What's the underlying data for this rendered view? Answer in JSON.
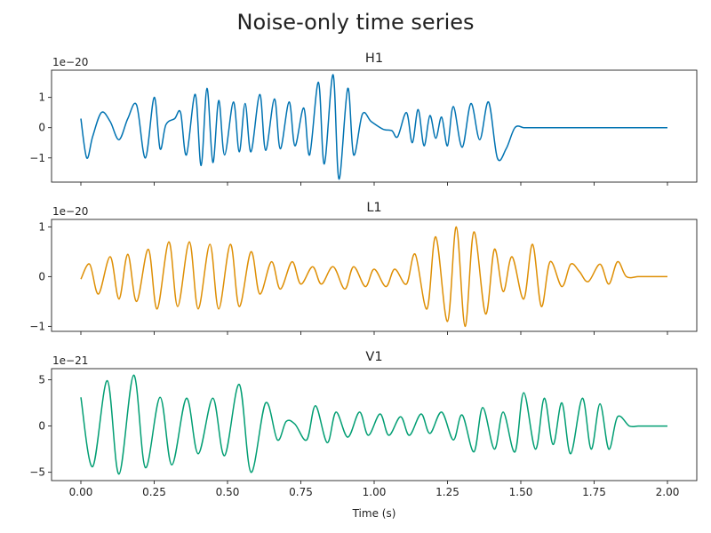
{
  "chart_data": {
    "type": "line",
    "title": "Noise-only time series",
    "xlabel": "Time (s)",
    "xlim": [
      -0.1,
      2.1
    ],
    "xticks": [
      0.0,
      0.25,
      0.5,
      0.75,
      1.0,
      1.25,
      1.5,
      1.75,
      2.0
    ],
    "xtick_labels": [
      "0.00",
      "0.25",
      "0.50",
      "0.75",
      "1.00",
      "1.25",
      "1.50",
      "1.75",
      "2.00"
    ],
    "panels": [
      {
        "title": "H1",
        "color": "#0173b2",
        "offset_label": "1e−20",
        "ylim": [
          -1.8,
          1.9
        ],
        "yticks": [
          1,
          0,
          -1
        ],
        "ytick_labels": [
          "1",
          "0",
          "−1"
        ],
        "x": [
          0.0,
          0.02,
          0.04,
          0.07,
          0.1,
          0.13,
          0.16,
          0.19,
          0.22,
          0.25,
          0.27,
          0.29,
          0.32,
          0.34,
          0.36,
          0.39,
          0.41,
          0.43,
          0.45,
          0.47,
          0.49,
          0.52,
          0.54,
          0.56,
          0.58,
          0.61,
          0.63,
          0.66,
          0.68,
          0.71,
          0.73,
          0.76,
          0.78,
          0.81,
          0.83,
          0.86,
          0.88,
          0.91,
          0.93,
          0.96,
          0.99,
          1.03,
          1.06,
          1.08,
          1.11,
          1.13,
          1.15,
          1.17,
          1.19,
          1.21,
          1.23,
          1.25,
          1.27,
          1.3,
          1.33,
          1.36,
          1.39,
          1.42,
          1.45,
          1.48,
          1.51,
          1.53,
          1.56,
          1.58,
          1.61,
          1.63,
          1.66,
          1.68,
          1.71,
          1.74,
          1.77,
          1.79,
          1.82,
          1.85,
          1.87,
          1.9,
          1.93,
          1.96,
          1.98,
          2.0
        ],
        "values": [
          0.3,
          -1.0,
          -0.3,
          0.5,
          0.2,
          -0.4,
          0.3,
          0.75,
          -1.0,
          1.0,
          -0.7,
          0.1,
          0.3,
          0.5,
          -0.9,
          1.1,
          -1.25,
          1.3,
          -1.15,
          0.9,
          -0.9,
          0.85,
          -0.8,
          0.8,
          -0.8,
          1.1,
          -0.75,
          0.95,
          -0.7,
          0.85,
          -0.6,
          0.65,
          -0.9,
          1.5,
          -1.2,
          1.75,
          -1.7,
          1.3,
          -0.9,
          0.45,
          0.2,
          -0.05,
          -0.1,
          -0.3,
          0.5,
          -0.5,
          0.6,
          -0.6,
          0.4,
          -0.35,
          0.35,
          -0.6,
          0.7,
          -0.65,
          0.8,
          -0.4,
          0.85,
          -1.0,
          -0.7,
          0.0,
          0.0,
          0.0,
          0.0,
          0.0,
          0.0,
          0.0,
          0.0,
          0.0,
          0.0,
          0.0,
          0.0,
          0.0,
          0.0,
          0.0,
          0.0,
          0.0,
          0.0,
          0.0,
          0.0,
          0.0
        ]
      },
      {
        "title": "L1",
        "color": "#de8f05",
        "offset_label": "1e−20",
        "ylim": [
          -1.1,
          1.15
        ],
        "yticks": [
          1,
          0,
          -1
        ],
        "ytick_labels": [
          "1",
          "0",
          "−1"
        ],
        "x": [
          0.0,
          0.03,
          0.06,
          0.1,
          0.13,
          0.16,
          0.19,
          0.23,
          0.26,
          0.3,
          0.33,
          0.37,
          0.4,
          0.44,
          0.47,
          0.51,
          0.54,
          0.58,
          0.61,
          0.65,
          0.68,
          0.72,
          0.75,
          0.79,
          0.82,
          0.86,
          0.9,
          0.93,
          0.97,
          1.0,
          1.04,
          1.07,
          1.11,
          1.14,
          1.18,
          1.21,
          1.25,
          1.28,
          1.31,
          1.34,
          1.38,
          1.41,
          1.44,
          1.47,
          1.51,
          1.54,
          1.57,
          1.6,
          1.64,
          1.67,
          1.7,
          1.73,
          1.77,
          1.8,
          1.83,
          1.86,
          1.9,
          1.93,
          1.96,
          2.0
        ],
        "values": [
          -0.05,
          0.25,
          -0.35,
          0.4,
          -0.45,
          0.45,
          -0.5,
          0.55,
          -0.65,
          0.7,
          -0.6,
          0.7,
          -0.65,
          0.65,
          -0.65,
          0.65,
          -0.6,
          0.5,
          -0.35,
          0.3,
          -0.25,
          0.3,
          -0.15,
          0.2,
          -0.15,
          0.2,
          -0.25,
          0.2,
          -0.2,
          0.15,
          -0.2,
          0.15,
          -0.15,
          0.45,
          -0.65,
          0.8,
          -0.9,
          1.0,
          -1.0,
          0.9,
          -0.75,
          0.55,
          -0.3,
          0.4,
          -0.45,
          0.65,
          -0.6,
          0.3,
          -0.2,
          0.25,
          0.1,
          -0.1,
          0.25,
          -0.15,
          0.3,
          0.0,
          0.0,
          0.0,
          0.0,
          0.0
        ]
      },
      {
        "title": "V1",
        "color": "#029e73",
        "offset_label": "1e−21",
        "ylim": [
          -5.9,
          6.2
        ],
        "yticks": [
          5,
          0,
          -5
        ],
        "ytick_labels": [
          "5",
          "0",
          "−5"
        ],
        "x": [
          0.0,
          0.04,
          0.09,
          0.13,
          0.18,
          0.22,
          0.27,
          0.31,
          0.36,
          0.4,
          0.45,
          0.49,
          0.54,
          0.58,
          0.63,
          0.67,
          0.7,
          0.73,
          0.77,
          0.8,
          0.84,
          0.87,
          0.91,
          0.95,
          0.98,
          1.02,
          1.05,
          1.09,
          1.12,
          1.16,
          1.19,
          1.23,
          1.27,
          1.3,
          1.34,
          1.37,
          1.41,
          1.44,
          1.48,
          1.51,
          1.55,
          1.58,
          1.61,
          1.64,
          1.67,
          1.71,
          1.74,
          1.77,
          1.8,
          1.83,
          1.87,
          1.9,
          1.93,
          1.96,
          2.0
        ],
        "values": [
          3.1,
          -4.4,
          4.9,
          -5.2,
          5.5,
          -4.5,
          3.1,
          -4.2,
          3.0,
          -3.0,
          3.0,
          -3.2,
          4.5,
          -5.0,
          2.5,
          -1.5,
          0.5,
          0.2,
          -1.5,
          2.2,
          -1.8,
          1.5,
          -1.2,
          1.5,
          -1.0,
          1.3,
          -1.0,
          1.0,
          -1.0,
          1.3,
          -0.8,
          1.5,
          -1.5,
          1.2,
          -2.8,
          2.0,
          -2.5,
          1.5,
          -2.8,
          3.6,
          -2.5,
          3.0,
          -2.0,
          2.5,
          -3.0,
          3.0,
          -2.5,
          2.4,
          -2.5,
          1.0,
          0.0,
          0.0,
          0.0,
          0.0,
          0.0
        ]
      }
    ]
  }
}
